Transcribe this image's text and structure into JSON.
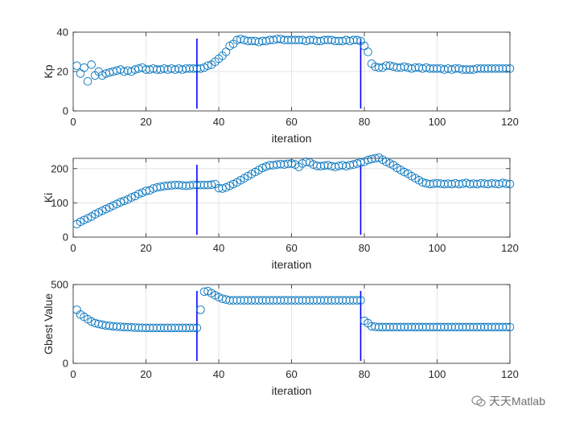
{
  "chart_data": [
    {
      "type": "scatter",
      "xlabel": "iteration",
      "ylabel": "Kp",
      "xlim": [
        0,
        120
      ],
      "ylim": [
        0,
        40
      ],
      "xticks": [
        0,
        20,
        40,
        60,
        80,
        100,
        120
      ],
      "yticks": [
        0,
        20,
        40
      ],
      "grid": true,
      "marker": "circle-open",
      "vlines": [
        34,
        79
      ],
      "series": [
        {
          "name": "Kp",
          "x": [
            1,
            2,
            3,
            4,
            5,
            6,
            7,
            8,
            9,
            10,
            11,
            12,
            13,
            14,
            15,
            16,
            17,
            18,
            19,
            20,
            21,
            22,
            23,
            24,
            25,
            26,
            27,
            28,
            29,
            30,
            31,
            32,
            33,
            34,
            35,
            36,
            37,
            38,
            39,
            40,
            41,
            42,
            43,
            44,
            45,
            46,
            47,
            48,
            49,
            50,
            51,
            52,
            53,
            54,
            55,
            56,
            57,
            58,
            59,
            60,
            61,
            62,
            63,
            64,
            65,
            66,
            67,
            68,
            69,
            70,
            71,
            72,
            73,
            74,
            75,
            76,
            77,
            78,
            79,
            80,
            81,
            82,
            83,
            84,
            85,
            86,
            87,
            88,
            89,
            90,
            91,
            92,
            93,
            94,
            95,
            96,
            97,
            98,
            99,
            100,
            101,
            102,
            103,
            104,
            105,
            106,
            107,
            108,
            109,
            110,
            111,
            112,
            113,
            114,
            115,
            116,
            117,
            118,
            119,
            120
          ],
          "values": [
            23,
            19,
            22,
            15,
            23.5,
            18,
            20,
            18,
            19,
            19.5,
            20,
            20.5,
            21,
            20,
            20.5,
            20,
            21,
            21.5,
            22,
            21,
            21,
            21.5,
            21,
            21,
            21.5,
            21,
            21.5,
            21,
            21.5,
            21,
            21.5,
            21.5,
            21.5,
            21.5,
            21.5,
            22,
            23,
            23.5,
            25,
            26.5,
            28,
            30,
            33,
            34,
            36,
            36.5,
            36,
            35.5,
            35.5,
            35.5,
            35,
            35.5,
            35.5,
            36,
            36,
            36.5,
            36.5,
            36,
            36,
            36,
            36,
            36,
            36,
            35.5,
            36,
            36,
            35.5,
            35.5,
            36,
            36,
            36,
            35.5,
            35.5,
            35.5,
            36,
            35.5,
            36,
            36,
            35.5,
            33,
            30,
            24,
            22.5,
            22,
            22,
            23,
            23,
            22.5,
            22,
            22,
            22.5,
            22,
            21.5,
            22,
            22,
            21.5,
            22,
            21.5,
            21.5,
            21.5,
            21.5,
            21,
            21.5,
            21,
            21.5,
            21.5,
            21,
            21,
            21,
            21,
            21.5,
            21.5,
            21.5,
            21.5,
            21.5,
            21.5,
            21.5,
            21.5,
            21.5,
            21.5
          ]
        }
      ]
    },
    {
      "type": "scatter",
      "xlabel": "iteration",
      "ylabel": "Ki",
      "xlim": [
        0,
        120
      ],
      "ylim": [
        0,
        230
      ],
      "xticks": [
        0,
        20,
        40,
        60,
        80,
        100,
        120
      ],
      "yticks": [
        0,
        100,
        200
      ],
      "grid": true,
      "marker": "circle-open",
      "vlines": [
        34,
        79
      ],
      "series": [
        {
          "name": "Ki",
          "x": [
            1,
            2,
            3,
            4,
            5,
            6,
            7,
            8,
            9,
            10,
            11,
            12,
            13,
            14,
            15,
            16,
            17,
            18,
            19,
            20,
            21,
            22,
            23,
            24,
            25,
            26,
            27,
            28,
            29,
            30,
            31,
            32,
            33,
            34,
            35,
            36,
            37,
            38,
            39,
            40,
            41,
            42,
            43,
            44,
            45,
            46,
            47,
            48,
            49,
            50,
            51,
            52,
            53,
            54,
            55,
            56,
            57,
            58,
            59,
            60,
            61,
            62,
            63,
            64,
            65,
            66,
            67,
            68,
            69,
            70,
            71,
            72,
            73,
            74,
            75,
            76,
            77,
            78,
            79,
            80,
            81,
            82,
            83,
            84,
            85,
            86,
            87,
            88,
            89,
            90,
            91,
            92,
            93,
            94,
            95,
            96,
            97,
            98,
            99,
            100,
            101,
            102,
            103,
            104,
            105,
            106,
            107,
            108,
            109,
            110,
            111,
            112,
            113,
            114,
            115,
            116,
            117,
            118,
            119,
            120
          ],
          "values": [
            38,
            45,
            50,
            55,
            60,
            67,
            72,
            77,
            82,
            87,
            92,
            97,
            102,
            106,
            110,
            116,
            120,
            126,
            130,
            135,
            136,
            142,
            145,
            147,
            149,
            150,
            151,
            152,
            152,
            151,
            150,
            151,
            152,
            152,
            152,
            152,
            152,
            153,
            155,
            143,
            142,
            145,
            150,
            155,
            160,
            166,
            172,
            178,
            184,
            190,
            196,
            202,
            206,
            210,
            210,
            212,
            213,
            212,
            214,
            215,
            212,
            205,
            215,
            220,
            218,
            212,
            208,
            207,
            209,
            210,
            207,
            205,
            208,
            210,
            207,
            210,
            212,
            215,
            218,
            220,
            225,
            228,
            230,
            232,
            226,
            220,
            215,
            210,
            202,
            196,
            190,
            185,
            178,
            172,
            166,
            160,
            157,
            155,
            156,
            157,
            156,
            155,
            156,
            155,
            157,
            155,
            156,
            158,
            155,
            156,
            155,
            157,
            156,
            155,
            157,
            156,
            155,
            158,
            156,
            155
          ]
        }
      ]
    },
    {
      "type": "scatter",
      "xlabel": "iteration",
      "ylabel": "Gbest Value",
      "xlim": [
        0,
        120
      ],
      "ylim": [
        0,
        500
      ],
      "xticks": [
        0,
        20,
        40,
        60,
        80,
        100,
        120
      ],
      "yticks": [
        0,
        500
      ],
      "grid": true,
      "marker": "circle-open",
      "vlines": [
        34,
        79
      ],
      "series": [
        {
          "name": "Gbest Value",
          "x": [
            1,
            2,
            3,
            4,
            5,
            6,
            7,
            8,
            9,
            10,
            11,
            12,
            13,
            14,
            15,
            16,
            17,
            18,
            19,
            20,
            21,
            22,
            23,
            24,
            25,
            26,
            27,
            28,
            29,
            30,
            31,
            32,
            33,
            34,
            35,
            36,
            37,
            38,
            39,
            40,
            41,
            42,
            43,
            44,
            45,
            46,
            47,
            48,
            49,
            50,
            51,
            52,
            53,
            54,
            55,
            56,
            57,
            58,
            59,
            60,
            61,
            62,
            63,
            64,
            65,
            66,
            67,
            68,
            69,
            70,
            71,
            72,
            73,
            74,
            75,
            76,
            77,
            78,
            79,
            80,
            81,
            82,
            83,
            84,
            85,
            86,
            87,
            88,
            89,
            90,
            91,
            92,
            93,
            94,
            95,
            96,
            97,
            98,
            99,
            100,
            101,
            102,
            103,
            104,
            105,
            106,
            107,
            108,
            109,
            110,
            111,
            112,
            113,
            114,
            115,
            116,
            117,
            118,
            119,
            120
          ],
          "values": [
            340,
            310,
            295,
            280,
            265,
            255,
            250,
            245,
            240,
            238,
            235,
            233,
            232,
            230,
            229,
            228,
            227,
            226,
            226,
            225,
            225,
            225,
            225,
            225,
            225,
            225,
            225,
            225,
            225,
            225,
            225,
            225,
            225,
            225,
            340,
            455,
            458,
            445,
            432,
            420,
            410,
            405,
            400,
            400,
            400,
            400,
            400,
            400,
            400,
            400,
            400,
            400,
            400,
            400,
            400,
            400,
            400,
            400,
            400,
            400,
            400,
            400,
            400,
            400,
            400,
            400,
            400,
            400,
            400,
            400,
            400,
            400,
            400,
            400,
            400,
            400,
            400,
            400,
            400,
            270,
            255,
            235,
            232,
            230,
            230,
            230,
            230,
            230,
            230,
            230,
            230,
            230,
            230,
            230,
            230,
            230,
            230,
            230,
            230,
            230,
            230,
            230,
            230,
            230,
            230,
            230,
            230,
            230,
            230,
            230,
            230,
            230,
            230,
            230,
            230,
            230,
            230,
            230,
            230,
            230
          ]
        }
      ]
    }
  ],
  "colors": {
    "marker": "#0072BD",
    "vline": "#0000FF",
    "grid": "#E5E5E5",
    "axis": "#262626"
  },
  "watermark": {
    "text": "天天Matlab",
    "icon": "wechat-icon"
  }
}
